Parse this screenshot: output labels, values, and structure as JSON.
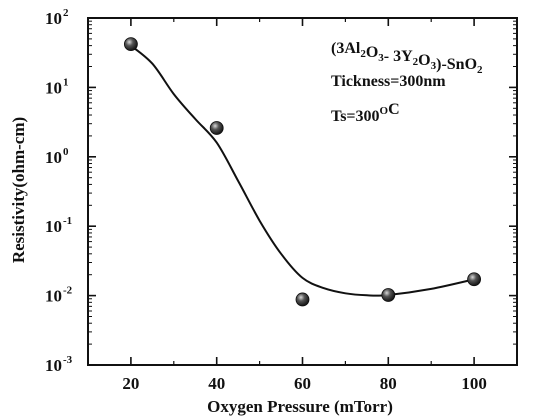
{
  "chart_data": {
    "type": "scatter",
    "xlabel": "Oxygen Pressure (mTorr)",
    "ylabel": "Resistivity(ohm-cm)",
    "xlim": [
      10,
      110
    ],
    "ylim": [
      0.001,
      100
    ],
    "xscale": "linear",
    "yscale": "log",
    "xticks": [
      20,
      40,
      60,
      80,
      100
    ],
    "yticks": [
      {
        "value": 0.001,
        "base": "10",
        "exp": "-3"
      },
      {
        "value": 0.01,
        "base": "10",
        "exp": "-2"
      },
      {
        "value": 0.1,
        "base": "10",
        "exp": "-1"
      },
      {
        "value": 1,
        "base": "10",
        "exp": "0"
      },
      {
        "value": 10,
        "base": "10",
        "exp": "1"
      },
      {
        "value": 100,
        "base": "10",
        "exp": "2"
      }
    ],
    "grid": false,
    "series": [
      {
        "points": [
          {
            "x": 20,
            "y": 42
          },
          {
            "x": 40,
            "y": 2.6
          },
          {
            "x": 60,
            "y": 0.0088
          },
          {
            "x": 80,
            "y": 0.0102
          },
          {
            "x": 100,
            "y": 0.0172
          }
        ]
      }
    ],
    "fit_curve": [
      {
        "x": 20,
        "y": 40
      },
      {
        "x": 25,
        "y": 22
      },
      {
        "x": 30,
        "y": 8
      },
      {
        "x": 35,
        "y": 3.5
      },
      {
        "x": 40,
        "y": 1.6
      },
      {
        "x": 45,
        "y": 0.45
      },
      {
        "x": 50,
        "y": 0.12
      },
      {
        "x": 55,
        "y": 0.04
      },
      {
        "x": 60,
        "y": 0.018
      },
      {
        "x": 65,
        "y": 0.0128
      },
      {
        "x": 70,
        "y": 0.0108
      },
      {
        "x": 75,
        "y": 0.0101
      },
      {
        "x": 80,
        "y": 0.0102
      },
      {
        "x": 90,
        "y": 0.0125
      },
      {
        "x": 100,
        "y": 0.0172
      }
    ],
    "annotations": {
      "line1_parts": [
        {
          "t": "(3Al",
          "s": "n"
        },
        {
          "t": "2",
          "s": "sub"
        },
        {
          "t": "O",
          "s": "n"
        },
        {
          "t": "3",
          "s": "sub"
        },
        {
          "t": "- 3Y",
          "s": "n"
        },
        {
          "t": "2",
          "s": "sub"
        },
        {
          "t": "O",
          "s": "n"
        },
        {
          "t": "3",
          "s": "sub"
        },
        {
          "t": ")-SnO",
          "s": "n"
        },
        {
          "t": "2",
          "s": "sub"
        }
      ],
      "line2": "Tickness=300nm",
      "line3_parts": [
        {
          "t": "Ts=300",
          "s": "n"
        },
        {
          "t": "O",
          "s": "sup"
        },
        {
          "t": "C",
          "s": "n"
        }
      ]
    },
    "colors": {
      "marker_fill": "#1a1a1a",
      "marker_highlight": "#d9d9d9",
      "line": "#111111"
    }
  }
}
